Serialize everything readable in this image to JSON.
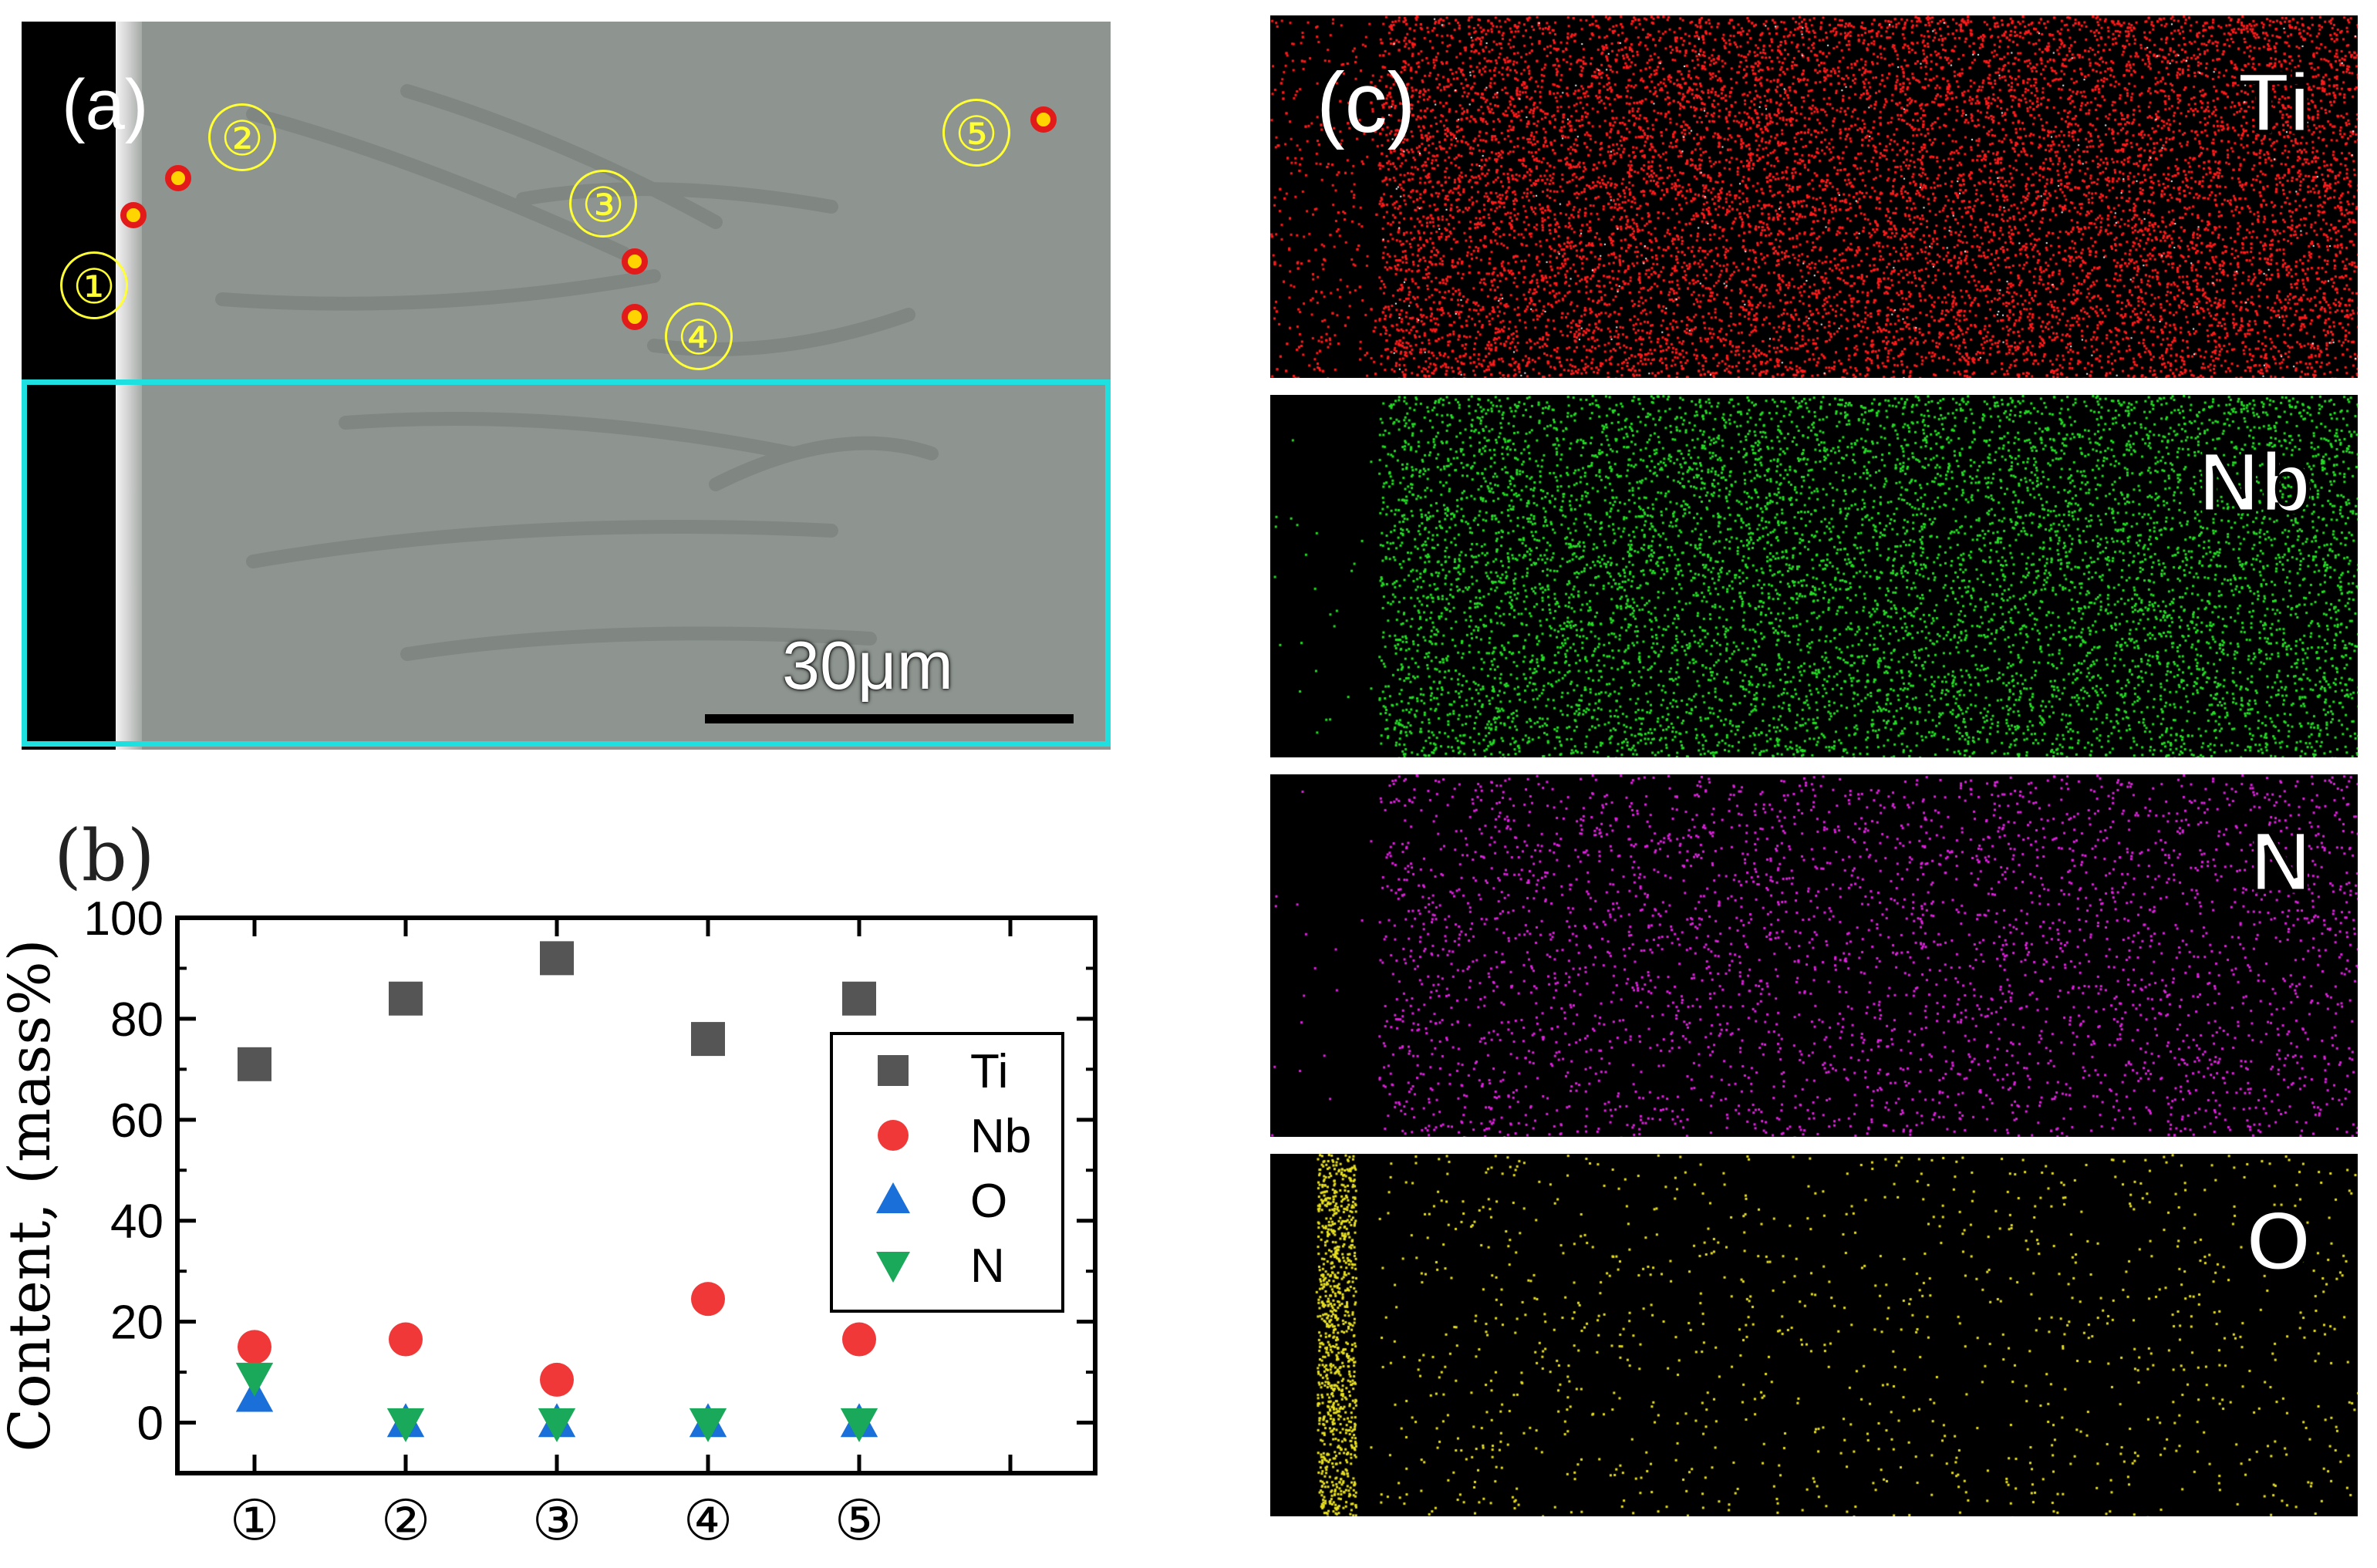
{
  "panel_a": {
    "label": "(a)",
    "scale_bar_text": "30μm",
    "sites": [
      "①",
      "②",
      "③",
      "④",
      "⑤"
    ],
    "colors": {
      "roi": "#1fe0e0",
      "marker_fill": "#ffd400",
      "marker_ring": "#e31a1a",
      "site_label": "#ffff33"
    }
  },
  "panel_b": {
    "label": "(b)"
  },
  "panel_c": {
    "label": "(c)",
    "maps": [
      {
        "element": "Ti",
        "color": "#ff1a1a",
        "density": 0.62
      },
      {
        "element": "Nb",
        "color": "#22dd22",
        "density": 0.38
      },
      {
        "element": "N",
        "color": "#e020e0",
        "density": 0.16
      },
      {
        "element": "O",
        "color": "#e8e020",
        "density": 0.05
      }
    ]
  },
  "chart_data": {
    "type": "scatter",
    "title": "",
    "xlabel": "",
    "ylabel": "Content, (mass%)",
    "categories": [
      "①",
      "②",
      "③",
      "④",
      "⑤"
    ],
    "ylim": [
      -10,
      100
    ],
    "yticks": [
      0,
      20,
      40,
      60,
      80,
      100
    ],
    "grid": false,
    "legend_position": "center-right",
    "series": [
      {
        "name": "Ti",
        "marker": "square",
        "color": "#555555",
        "values": [
          71,
          84,
          92,
          76,
          84
        ]
      },
      {
        "name": "Nb",
        "marker": "circle",
        "color": "#f03838",
        "values": [
          15,
          16.5,
          8.5,
          24.5,
          16.5
        ]
      },
      {
        "name": "O",
        "marker": "triangle-up",
        "color": "#1a6fd8",
        "values": [
          5,
          0,
          0,
          0,
          0
        ]
      },
      {
        "name": "N",
        "marker": "triangle-down",
        "color": "#1aa85a",
        "values": [
          9,
          0,
          0,
          0,
          0
        ]
      }
    ]
  }
}
